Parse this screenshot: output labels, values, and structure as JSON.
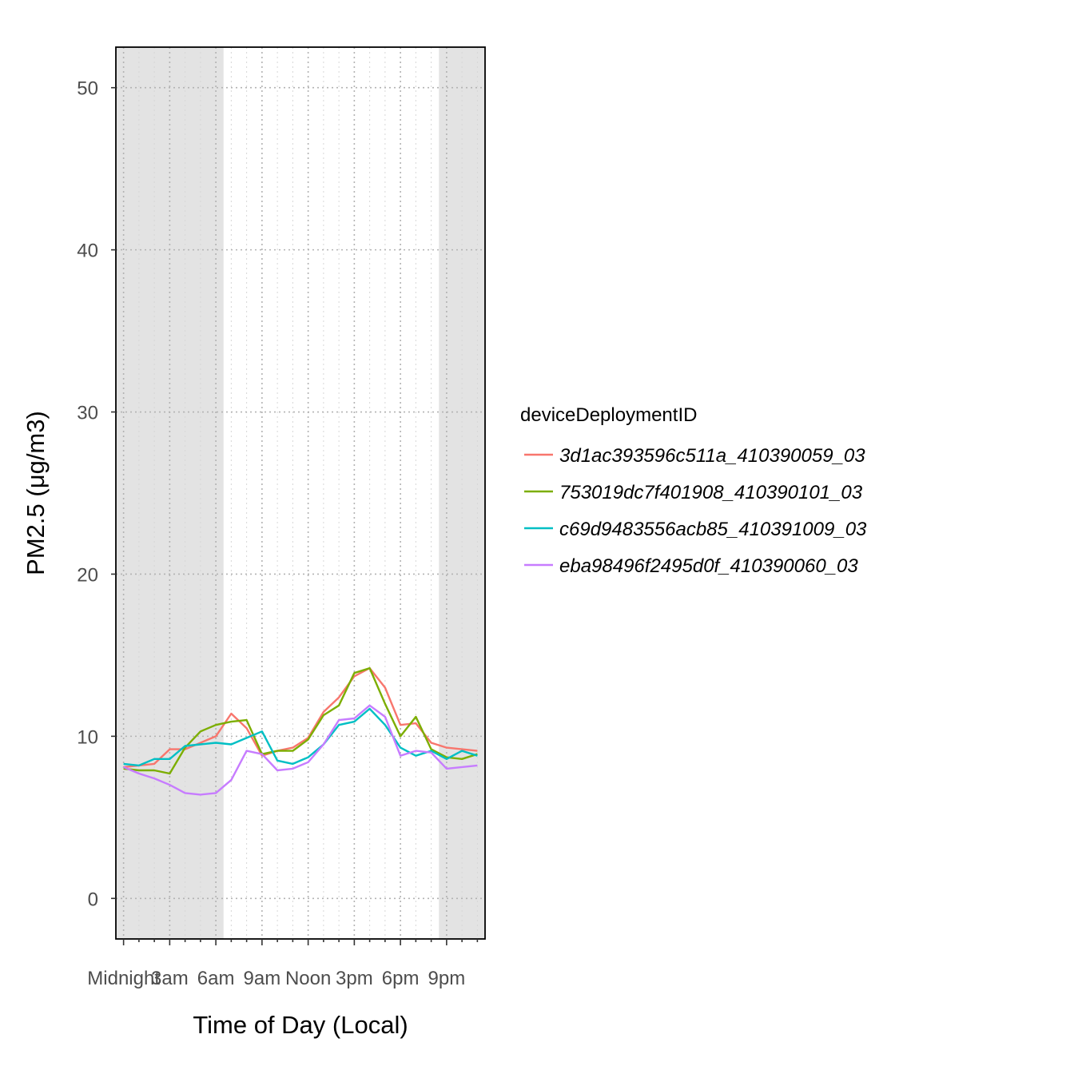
{
  "chart_data": {
    "type": "line",
    "xlabel": "Time of Day (Local)",
    "ylabel": "PM2.5 (μg/m3)",
    "ylim": [
      -2.5,
      52.5
    ],
    "yticks": [
      0,
      10,
      20,
      30,
      40,
      50
    ],
    "xlim": [
      -0.5,
      23.5
    ],
    "xtick_values": [
      0,
      3,
      6,
      9,
      12,
      15,
      18,
      21
    ],
    "xtick_labels": [
      "Midnight",
      "3am",
      "6am",
      "9am",
      "Noon",
      "3pm",
      "6pm",
      "9pm"
    ],
    "grid": "dotted",
    "night_shading": [
      {
        "from_hour": -0.5,
        "to_hour": 6.5,
        "color": "#e3e3e3"
      },
      {
        "from_hour": 20.5,
        "to_hour": 23.5,
        "color": "#e3e3e3"
      }
    ],
    "legend": {
      "title": "deviceDeploymentID",
      "position": "right"
    },
    "x": [
      0,
      1,
      2,
      3,
      4,
      5,
      6,
      7,
      8,
      9,
      10,
      11,
      12,
      13,
      14,
      15,
      16,
      17,
      18,
      19,
      20,
      21,
      22,
      23
    ],
    "series": [
      {
        "name": "3d1ac393596c511a_410390059_03",
        "color": "#F8766D",
        "values": [
          8.1,
          8.2,
          8.3,
          9.2,
          9.2,
          9.6,
          10.0,
          11.4,
          10.5,
          8.8,
          9.1,
          9.3,
          9.9,
          11.5,
          12.4,
          13.7,
          14.2,
          13.0,
          10.7,
          10.8,
          9.6,
          9.3,
          9.2,
          9.1
        ]
      },
      {
        "name": "753019dc7f401908_410390101_03",
        "color": "#7CAE00",
        "values": [
          8.0,
          7.9,
          7.9,
          7.7,
          9.3,
          10.3,
          10.7,
          10.9,
          11.0,
          8.9,
          9.1,
          9.1,
          9.8,
          11.3,
          11.9,
          13.9,
          14.2,
          12.0,
          10.0,
          11.2,
          9.2,
          8.7,
          8.6,
          8.9
        ]
      },
      {
        "name": "c69d9483556acb85_410391009_03",
        "color": "#00BFC4",
        "values": [
          8.3,
          8.2,
          8.6,
          8.6,
          9.4,
          9.5,
          9.6,
          9.5,
          9.9,
          10.3,
          8.5,
          8.3,
          8.7,
          9.5,
          10.7,
          10.9,
          11.7,
          10.7,
          9.3,
          8.8,
          9.1,
          8.6,
          9.1,
          8.8
        ]
      },
      {
        "name": "eba98496f2495d0f_410390060_03",
        "color": "#C77CFF",
        "values": [
          8.1,
          7.7,
          7.4,
          7.0,
          6.5,
          6.4,
          6.5,
          7.3,
          9.1,
          8.9,
          7.9,
          8.0,
          8.4,
          9.5,
          11.0,
          11.1,
          11.9,
          11.2,
          8.8,
          9.1,
          9.0,
          8.0,
          8.1,
          8.2
        ]
      }
    ]
  }
}
